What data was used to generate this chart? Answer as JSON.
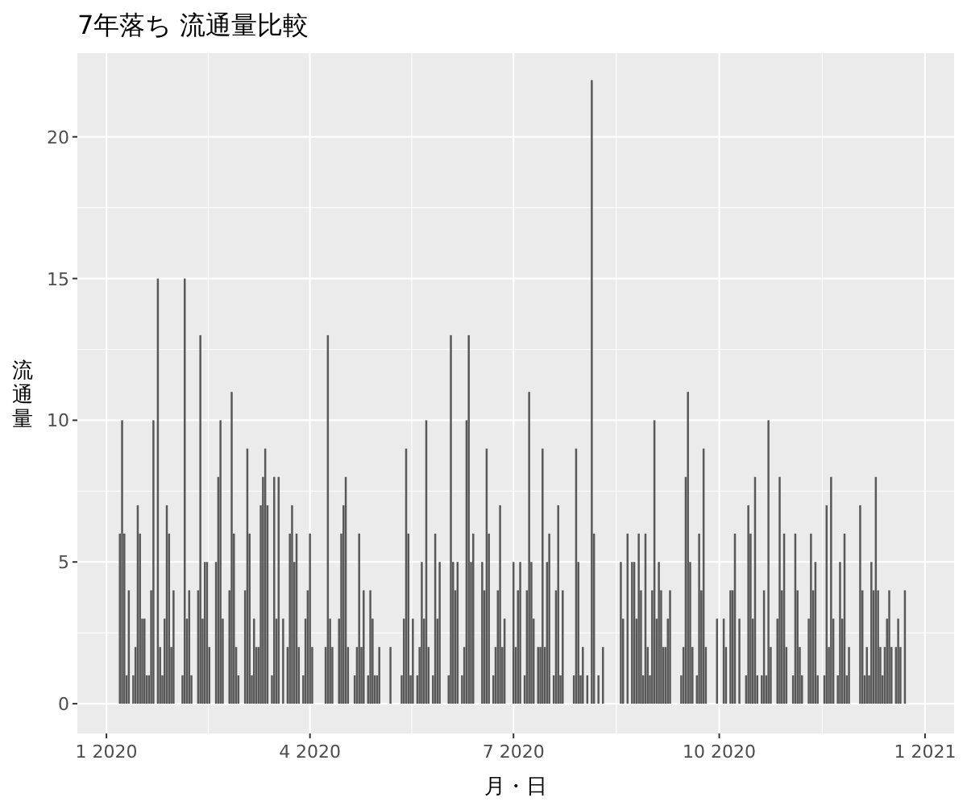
{
  "chart_data": {
    "type": "bar",
    "title": "7年落ち 流通量比較",
    "xlabel": "月・日",
    "ylabel": "流通量",
    "color": "#595959",
    "grid": true,
    "xlim": [
      "2019-12-19",
      "2021-01-14"
    ],
    "xticks": [
      {
        "value": "2020-01-01",
        "label": "1 2020"
      },
      {
        "value": "2020-04-01",
        "label": "4 2020"
      },
      {
        "value": "2020-07-01",
        "label": "7 2020"
      },
      {
        "value": "2020-10-01",
        "label": "10 2020"
      },
      {
        "value": "2021-01-01",
        "label": "1 2021"
      }
    ],
    "ylim": [
      -1.05,
      22.95
    ],
    "yticks": [
      0,
      5,
      10,
      15,
      20
    ],
    "x": [
      "2020-01-07",
      "2020-01-08",
      "2020-01-09",
      "2020-01-10",
      "2020-01-11",
      "2020-01-13",
      "2020-01-14",
      "2020-01-15",
      "2020-01-16",
      "2020-01-17",
      "2020-01-18",
      "2020-01-19",
      "2020-01-20",
      "2020-01-21",
      "2020-01-22",
      "2020-01-24",
      "2020-01-25",
      "2020-01-26",
      "2020-01-27",
      "2020-01-28",
      "2020-01-29",
      "2020-01-30",
      "2020-01-31",
      "2020-02-04",
      "2020-02-05",
      "2020-02-06",
      "2020-02-07",
      "2020-02-08",
      "2020-02-11",
      "2020-02-12",
      "2020-02-13",
      "2020-02-14",
      "2020-02-15",
      "2020-02-16",
      "2020-02-19",
      "2020-02-20",
      "2020-02-21",
      "2020-02-22",
      "2020-02-25",
      "2020-02-26",
      "2020-02-27",
      "2020-02-28",
      "2020-02-29",
      "2020-03-03",
      "2020-03-04",
      "2020-03-05",
      "2020-03-06",
      "2020-03-07",
      "2020-03-08",
      "2020-03-09",
      "2020-03-10",
      "2020-03-11",
      "2020-03-12",
      "2020-03-13",
      "2020-03-15",
      "2020-03-16",
      "2020-03-17",
      "2020-03-18",
      "2020-03-20",
      "2020-03-22",
      "2020-03-23",
      "2020-03-24",
      "2020-03-25",
      "2020-03-26",
      "2020-03-27",
      "2020-03-29",
      "2020-03-30",
      "2020-03-31",
      "2020-04-01",
      "2020-04-02",
      "2020-04-08",
      "2020-04-09",
      "2020-04-10",
      "2020-04-11",
      "2020-04-14",
      "2020-04-15",
      "2020-04-16",
      "2020-04-17",
      "2020-04-18",
      "2020-04-21",
      "2020-04-22",
      "2020-04-23",
      "2020-04-24",
      "2020-04-25",
      "2020-04-27",
      "2020-04-28",
      "2020-04-29",
      "2020-04-30",
      "2020-05-01",
      "2020-05-02",
      "2020-05-07",
      "2020-05-12",
      "2020-05-13",
      "2020-05-14",
      "2020-05-15",
      "2020-05-16",
      "2020-05-17",
      "2020-05-19",
      "2020-05-20",
      "2020-05-21",
      "2020-05-22",
      "2020-05-23",
      "2020-05-24",
      "2020-05-26",
      "2020-05-27",
      "2020-05-28",
      "2020-05-29",
      "2020-06-02",
      "2020-06-03",
      "2020-06-04",
      "2020-06-05",
      "2020-06-06",
      "2020-06-08",
      "2020-06-09",
      "2020-06-10",
      "2020-06-11",
      "2020-06-12",
      "2020-06-13",
      "2020-06-17",
      "2020-06-18",
      "2020-06-19",
      "2020-06-20",
      "2020-06-22",
      "2020-06-23",
      "2020-06-24",
      "2020-06-25",
      "2020-06-26",
      "2020-06-27",
      "2020-07-01",
      "2020-07-02",
      "2020-07-03",
      "2020-07-04",
      "2020-07-06",
      "2020-07-07",
      "2020-07-08",
      "2020-07-09",
      "2020-07-10",
      "2020-07-12",
      "2020-07-13",
      "2020-07-14",
      "2020-07-15",
      "2020-07-16",
      "2020-07-17",
      "2020-07-19",
      "2020-07-20",
      "2020-07-21",
      "2020-07-22",
      "2020-07-23",
      "2020-07-28",
      "2020-07-29",
      "2020-07-30",
      "2020-07-31",
      "2020-08-01",
      "2020-08-03",
      "2020-08-05",
      "2020-08-06",
      "2020-08-08",
      "2020-08-10",
      "2020-08-18",
      "2020-08-19",
      "2020-08-21",
      "2020-08-23",
      "2020-08-24",
      "2020-08-25",
      "2020-08-26",
      "2020-08-27",
      "2020-08-28",
      "2020-08-29",
      "2020-08-30",
      "2020-08-31",
      "2020-09-01",
      "2020-09-02",
      "2020-09-03",
      "2020-09-04",
      "2020-09-05",
      "2020-09-06",
      "2020-09-07",
      "2020-09-08",
      "2020-09-09",
      "2020-09-14",
      "2020-09-15",
      "2020-09-16",
      "2020-09-17",
      "2020-09-18",
      "2020-09-19",
      "2020-09-21",
      "2020-09-22",
      "2020-09-23",
      "2020-09-24",
      "2020-09-25",
      "2020-09-30",
      "2020-10-03",
      "2020-10-04",
      "2020-10-06",
      "2020-10-07",
      "2020-10-08",
      "2020-10-10",
      "2020-10-13",
      "2020-10-14",
      "2020-10-15",
      "2020-10-16",
      "2020-10-17",
      "2020-10-18",
      "2020-10-20",
      "2020-10-21",
      "2020-10-22",
      "2020-10-23",
      "2020-10-24",
      "2020-10-27",
      "2020-10-28",
      "2020-10-29",
      "2020-10-30",
      "2020-10-31",
      "2020-11-03",
      "2020-11-04",
      "2020-11-05",
      "2020-11-06",
      "2020-11-07",
      "2020-11-10",
      "2020-11-11",
      "2020-11-12",
      "2020-11-13",
      "2020-11-14",
      "2020-11-17",
      "2020-11-18",
      "2020-11-19",
      "2020-11-20",
      "2020-11-21",
      "2020-11-23",
      "2020-11-24",
      "2020-11-25",
      "2020-11-26",
      "2020-11-27",
      "2020-11-28",
      "2020-12-03",
      "2020-12-04",
      "2020-12-05",
      "2020-12-06",
      "2020-12-07",
      "2020-12-08",
      "2020-12-09",
      "2020-12-10",
      "2020-12-11",
      "2020-12-12",
      "2020-12-13",
      "2020-12-14",
      "2020-12-15",
      "2020-12-16",
      "2020-12-17",
      "2020-12-19",
      "2020-12-20",
      "2020-12-21",
      "2020-12-23"
    ],
    "values": [
      6,
      10,
      6,
      1,
      4,
      1,
      2,
      7,
      6,
      3,
      3,
      1,
      1,
      4,
      10,
      15,
      2,
      1,
      3,
      7,
      6,
      2,
      4,
      1,
      15,
      3,
      4,
      1,
      4,
      13,
      3,
      5,
      5,
      2,
      5,
      8,
      10,
      3,
      4,
      11,
      6,
      2,
      1,
      4,
      9,
      6,
      1,
      3,
      2,
      2,
      7,
      8,
      9,
      7,
      1,
      8,
      3,
      8,
      3,
      2,
      6,
      7,
      5,
      6,
      2,
      1,
      3,
      4,
      6,
      2,
      2,
      13,
      3,
      2,
      3,
      6,
      7,
      8,
      2,
      1,
      2,
      6,
      2,
      4,
      1,
      4,
      3,
      1,
      1,
      2,
      2,
      1,
      3,
      9,
      6,
      1,
      3,
      1,
      2,
      5,
      3,
      10,
      2,
      1,
      6,
      3,
      5,
      1,
      13,
      5,
      4,
      5,
      1,
      2,
      10,
      13,
      5,
      6,
      5,
      4,
      9,
      6,
      1,
      2,
      4,
      7,
      2,
      3,
      5,
      2,
      4,
      5,
      1,
      4,
      11,
      5,
      3,
      2,
      2,
      9,
      2,
      5,
      6,
      1,
      4,
      7,
      1,
      4,
      1,
      9,
      5,
      1,
      2,
      1,
      22,
      6,
      1,
      2,
      5,
      3,
      6,
      5,
      5,
      3,
      6,
      4,
      1,
      6,
      2,
      1,
      4,
      10,
      3,
      5,
      4,
      2,
      2,
      3,
      4,
      1,
      2,
      8,
      11,
      5,
      2,
      1,
      6,
      4,
      9,
      2,
      3,
      3,
      2,
      4,
      4,
      6,
      3,
      1,
      7,
      6,
      3,
      8,
      1,
      1,
      4,
      1,
      10,
      2,
      3,
      8,
      4,
      6,
      2,
      1,
      6,
      4,
      2,
      1,
      3,
      6,
      4,
      5,
      1,
      1,
      7,
      2,
      8,
      3,
      1,
      5,
      3,
      6,
      1,
      2,
      7,
      4,
      1,
      2,
      1,
      5,
      4,
      8,
      4,
      2,
      1,
      2,
      3,
      4,
      2,
      2,
      3,
      2,
      4
    ]
  }
}
